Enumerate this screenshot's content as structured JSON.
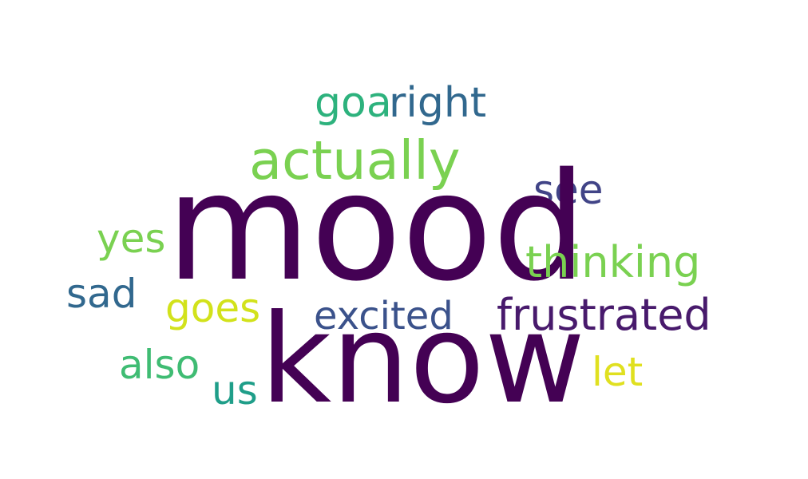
{
  "words": {
    "mood": {
      "text": "mood",
      "color": "#440154"
    },
    "know": {
      "text": "know",
      "color": "#440154"
    },
    "actually": {
      "text": "actually",
      "color": "#7ad151"
    },
    "frustrated": {
      "text": "frustrated",
      "color": "#481a6c"
    },
    "thinking": {
      "text": "thinking",
      "color": "#7ad151"
    },
    "excited": {
      "text": "excited",
      "color": "#3b528b"
    },
    "right": {
      "text": "right",
      "color": "#31688e"
    },
    "goa": {
      "text": "goa",
      "color": "#2db27d"
    },
    "see": {
      "text": "see",
      "color": "#414487"
    },
    "yes": {
      "text": "yes",
      "color": "#7ad151"
    },
    "goes": {
      "text": "goes",
      "color": "#d2e21b"
    },
    "sad": {
      "text": "sad",
      "color": "#31688e"
    },
    "also": {
      "text": "also",
      "color": "#3fbc73"
    },
    "let": {
      "text": "let",
      "color": "#e0e020"
    },
    "us": {
      "text": "us",
      "color": "#1f9e89"
    }
  }
}
